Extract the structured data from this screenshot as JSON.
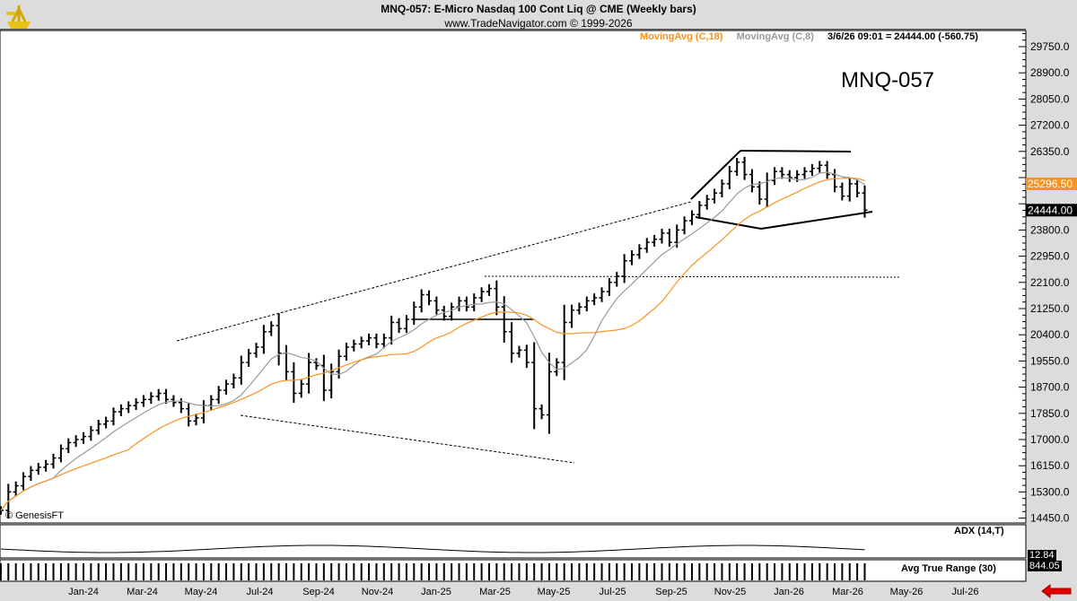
{
  "header": {
    "title": "MNQ-057:  E-Micro Nasdaq 100 Cont Liq @ CME  (Weekly bars)",
    "subtitle": "www.TradeNavigator.com © 1999-2026"
  },
  "legend": {
    "ma18": "MovingAvg (C,18)",
    "ma8": "MovingAvg (C,8)",
    "readout": "3/6/26 09:01 = 24444.00 (-560.75)"
  },
  "symbol_label": "MNQ-057",
  "watermark": "GenesisFT",
  "panels": {
    "adx": "ADX (14,T)",
    "adx_value": "12.84",
    "atr": "Avg True Range (30)",
    "atr_value": "844.05"
  },
  "colors": {
    "ma18": "#f7931e",
    "ma8": "#999999",
    "bars": "#000000",
    "arrow": "#e00000"
  },
  "chart_data": {
    "type": "ohlc",
    "title": "MNQ-057:  E-Micro Nasdaq 100 Cont Liq @ CME  (Weekly bars)",
    "ylim": [
      14450,
      30100
    ],
    "yticks": [
      29750,
      28900,
      28050,
      27200,
      26350,
      25500,
      24650,
      23800,
      22950,
      22100,
      21250,
      20400,
      19550,
      18700,
      17850,
      17000,
      16150,
      15300,
      14450
    ],
    "ytick_labels": [
      "29750.0",
      "28900.0",
      "28050.0",
      "27200.0",
      "26350.0",
      "25500.0",
      "24650.0",
      "23800.0",
      "22950.0",
      "22100.0",
      "21250.0",
      "20400.0",
      "19550.0",
      "18700.0",
      "17850.0",
      "17000.0",
      "16150.0",
      "15300.0",
      "14450.0"
    ],
    "hidden_ticks": [
      25500,
      24650
    ],
    "xtick_labels": [
      "Jan-24",
      "Mar-24",
      "May-24",
      "Jul-24",
      "Sep-24",
      "Nov-24",
      "Jan-25",
      "Mar-25",
      "May-25",
      "Jul-25",
      "Sep-25",
      "Nov-25",
      "Jan-26",
      "Mar-26",
      "May-26",
      "Jul-26"
    ],
    "last_price_label": "24444.00",
    "ma18_label": "25296.50",
    "closes": [
      14700,
      15300,
      15500,
      15800,
      16000,
      16100,
      16200,
      16400,
      16700,
      16900,
      17000,
      17100,
      17300,
      17500,
      17600,
      17900,
      18000,
      18100,
      18200,
      18300,
      18400,
      18500,
      18300,
      18200,
      18000,
      17600,
      17700,
      18100,
      18300,
      18600,
      18800,
      19000,
      19500,
      19800,
      20000,
      20500,
      20700,
      19800,
      19200,
      18500,
      18800,
      19500,
      19400,
      18600,
      19200,
      19700,
      20000,
      20100,
      20200,
      20300,
      20100,
      20300,
      20800,
      20600,
      20900,
      21300,
      21700,
      21500,
      21200,
      21000,
      21300,
      21500,
      21300,
      21600,
      21800,
      21900,
      21300,
      20500,
      19800,
      19900,
      19500,
      18000,
      17800,
      19200,
      19500,
      20800,
      21200,
      21300,
      21500,
      21600,
      21800,
      22100,
      22300,
      22800,
      23000,
      23200,
      23400,
      23500,
      23700,
      23400,
      23800,
      24100,
      24300,
      24600,
      24800,
      25000,
      25300,
      25700,
      26000,
      25600,
      25200,
      24800,
      25400,
      25700,
      25600,
      25500,
      25600,
      25700,
      25800,
      25900,
      25600,
      25200,
      24900,
      25300,
      25000,
      24444
    ],
    "indicators": [
      "MovingAvg (C,18)",
      "MovingAvg (C,8)",
      "ADX (14,T)",
      "Avg True Range (30)"
    ]
  }
}
